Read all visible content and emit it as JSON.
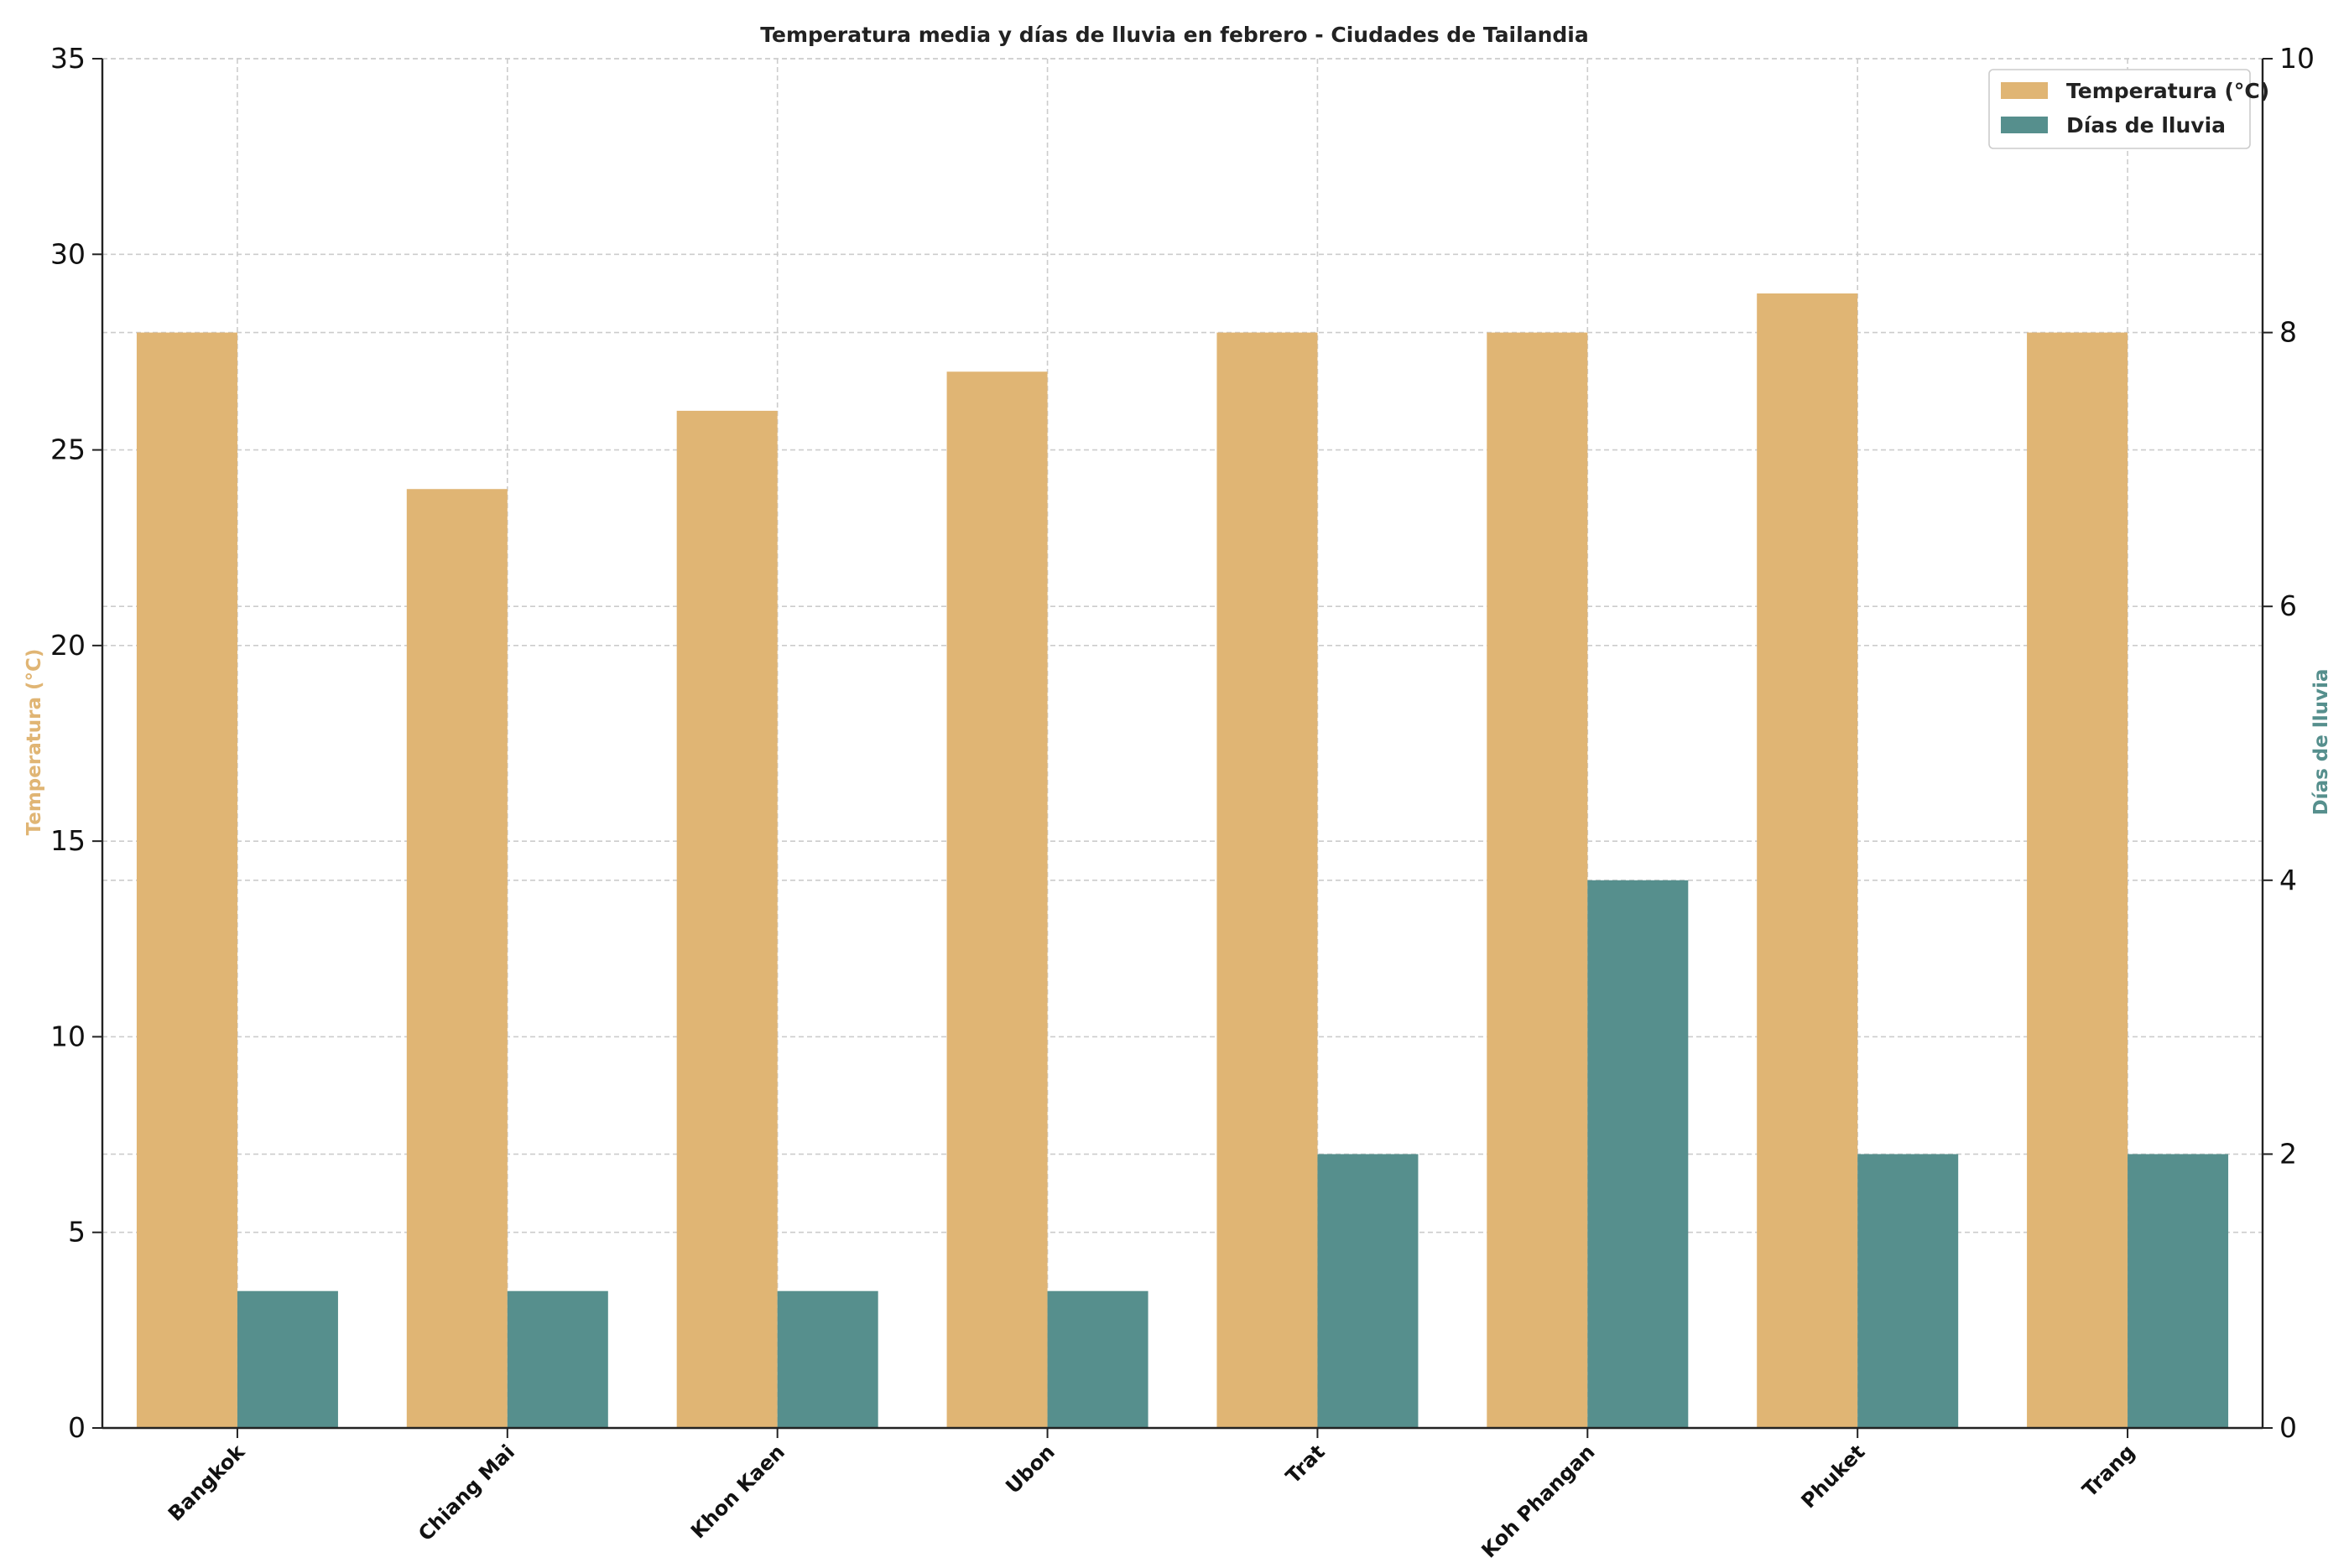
{
  "chart_data": {
    "type": "bar",
    "title": "Temperatura media y días de lluvia en febrero - Ciudades de Tailandia",
    "categories": [
      "Bangkok",
      "Chiang Mai",
      "Khon Kaen",
      "Ubon",
      "Trat",
      "Koh Phangan",
      "Phuket",
      "Trang"
    ],
    "series": [
      {
        "name": "Temperatura (°C)",
        "axis": "left",
        "color": "#e0b574",
        "values": [
          28,
          24,
          26,
          27,
          28,
          28,
          29,
          28
        ]
      },
      {
        "name": "Días de lluvia",
        "axis": "right",
        "color": "#568f8d",
        "values": [
          1,
          1,
          1,
          1,
          2,
          4,
          2,
          2
        ]
      }
    ],
    "ylabel": "Temperatura (°C)",
    "ylabel_color": "#e0b574",
    "ylim": [
      0,
      35
    ],
    "yticks": [
      "0",
      "5",
      "10",
      "15",
      "20",
      "25",
      "30",
      "35"
    ],
    "y2label": "Días de lluvia",
    "y2label_color": "#568f8d",
    "y2lim": [
      0,
      10
    ],
    "y2ticks": [
      "0",
      "2",
      "4",
      "6",
      "8",
      "10"
    ],
    "grid": true,
    "legend_position": "top-right"
  }
}
